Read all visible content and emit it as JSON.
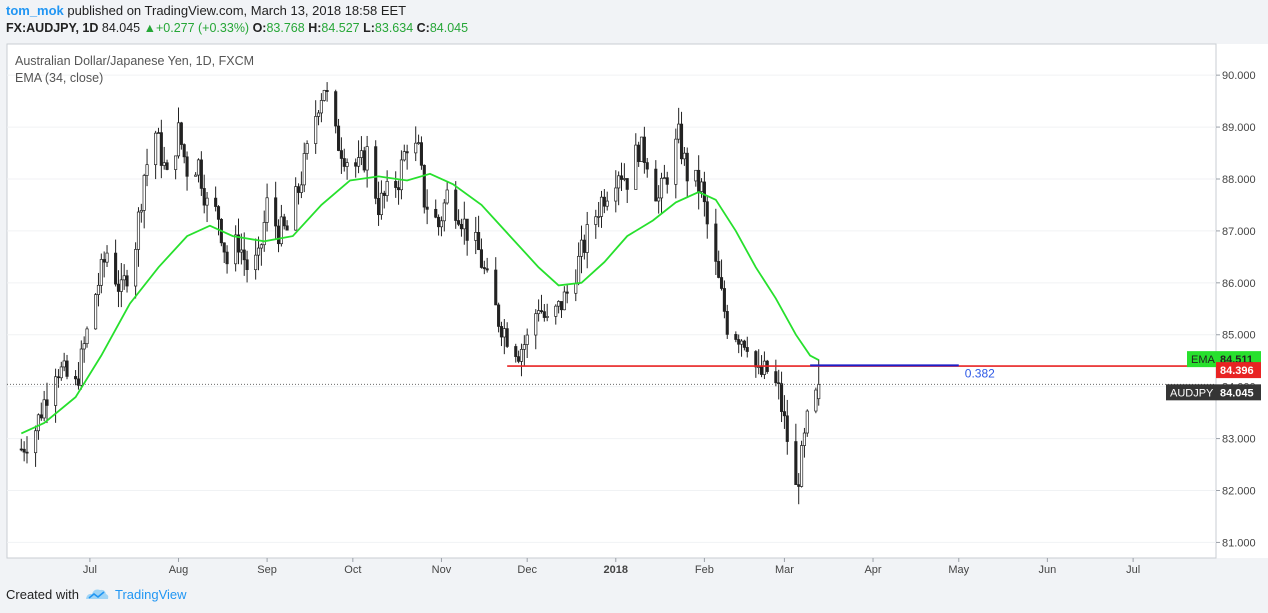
{
  "header": {
    "author": "tom_mok",
    "published_text": "published on TradingView.com, March 13, 2018 18:58 EET",
    "symbol": "FX:AUDJPY, 1D",
    "last": "84.045",
    "change": "+0.277 (+0.33%)",
    "o_label": "O:",
    "o": "83.768",
    "h_label": "H:",
    "h": "84.527",
    "l_label": "L:",
    "l": "83.634",
    "c_label": "C:",
    "c": "84.045"
  },
  "legend": {
    "title": "Australian Dollar/Japanese Yen, 1D, FXCM",
    "indicator": "EMA (34, close)"
  },
  "footer": {
    "created_with": "Created with",
    "brand": "TradingView"
  },
  "colors": {
    "candle": "#222222",
    "ema": "#27e02d",
    "support": "#e82323",
    "fib": "#1e1ec8",
    "fib_label": "#2d58e6",
    "brand": "#2196f3"
  },
  "chart_data": {
    "type": "candlestick",
    "yaxis": {
      "min": 80.7,
      "max": 90.6,
      "ticks": [
        "81.000",
        "82.000",
        "83.000",
        "84.000",
        "85.000",
        "86.000",
        "87.000",
        "88.000",
        "89.000",
        "90.000"
      ]
    },
    "xaxis": {
      "labels": [
        {
          "text": "Jul",
          "date": "2017-07-01"
        },
        {
          "text": "Aug",
          "date": "2017-08-01"
        },
        {
          "text": "Sep",
          "date": "2017-09-01"
        },
        {
          "text": "Oct",
          "date": "2017-10-01"
        },
        {
          "text": "Nov",
          "date": "2017-11-01"
        },
        {
          "text": "Dec",
          "date": "2017-12-01"
        },
        {
          "text": "2018",
          "date": "2018-01-01",
          "bold": true
        },
        {
          "text": "Feb",
          "date": "2018-02-01"
        },
        {
          "text": "Mar",
          "date": "2018-03-01"
        },
        {
          "text": "Apr",
          "date": "2018-04-01"
        },
        {
          "text": "May",
          "date": "2018-05-01"
        },
        {
          "text": "Jun",
          "date": "2018-06-01"
        },
        {
          "text": "Jul",
          "date": "2018-07-01"
        }
      ]
    },
    "price_path": [
      {
        "date": "2017-06-07",
        "price": 82.8
      },
      {
        "date": "2017-06-12",
        "price": 83.2
      },
      {
        "date": "2017-06-19",
        "price": 84.4
      },
      {
        "date": "2017-06-26",
        "price": 84.0
      },
      {
        "date": "2017-07-03",
        "price": 85.8
      },
      {
        "date": "2017-07-07",
        "price": 86.6
      },
      {
        "date": "2017-07-12",
        "price": 85.8
      },
      {
        "date": "2017-07-17",
        "price": 86.8
      },
      {
        "date": "2017-07-20",
        "price": 88.1
      },
      {
        "date": "2017-07-24",
        "price": 88.9
      },
      {
        "date": "2017-07-28",
        "price": 88.0
      },
      {
        "date": "2017-08-01",
        "price": 88.9
      },
      {
        "date": "2017-08-04",
        "price": 88.2
      },
      {
        "date": "2017-08-08",
        "price": 88.3
      },
      {
        "date": "2017-08-11",
        "price": 87.5
      },
      {
        "date": "2017-08-15",
        "price": 87.3
      },
      {
        "date": "2017-08-18",
        "price": 86.4
      },
      {
        "date": "2017-08-22",
        "price": 86.8
      },
      {
        "date": "2017-08-25",
        "price": 86.3
      },
      {
        "date": "2017-08-29",
        "price": 86.4
      },
      {
        "date": "2017-09-01",
        "price": 87.5
      },
      {
        "date": "2017-09-05",
        "price": 87.0
      },
      {
        "date": "2017-09-08",
        "price": 87.0
      },
      {
        "date": "2017-09-12",
        "price": 87.8
      },
      {
        "date": "2017-09-15",
        "price": 88.5
      },
      {
        "date": "2017-09-19",
        "price": 89.5
      },
      {
        "date": "2017-09-21",
        "price": 89.8
      },
      {
        "date": "2017-09-25",
        "price": 88.8
      },
      {
        "date": "2017-09-29",
        "price": 88.4
      },
      {
        "date": "2017-10-03",
        "price": 88.2
      },
      {
        "date": "2017-10-06",
        "price": 88.5
      },
      {
        "date": "2017-10-10",
        "price": 87.5
      },
      {
        "date": "2017-10-13",
        "price": 87.7
      },
      {
        "date": "2017-10-17",
        "price": 88.0
      },
      {
        "date": "2017-10-20",
        "price": 88.7
      },
      {
        "date": "2017-10-24",
        "price": 88.5
      },
      {
        "date": "2017-10-26",
        "price": 87.6
      },
      {
        "date": "2017-10-31",
        "price": 87.1
      },
      {
        "date": "2017-11-03",
        "price": 87.7
      },
      {
        "date": "2017-11-07",
        "price": 87.4
      },
      {
        "date": "2017-11-10",
        "price": 87.0
      },
      {
        "date": "2017-11-14",
        "price": 86.6
      },
      {
        "date": "2017-11-17",
        "price": 86.0
      },
      {
        "date": "2017-11-21",
        "price": 85.3
      },
      {
        "date": "2017-11-24",
        "price": 85.0
      },
      {
        "date": "2017-11-28",
        "price": 84.7
      },
      {
        "date": "2017-12-01",
        "price": 84.9
      },
      {
        "date": "2017-12-05",
        "price": 85.6
      },
      {
        "date": "2017-12-08",
        "price": 85.2
      },
      {
        "date": "2017-12-12",
        "price": 85.5
      },
      {
        "date": "2017-12-15",
        "price": 85.8
      },
      {
        "date": "2017-12-19",
        "price": 86.4
      },
      {
        "date": "2017-12-22",
        "price": 86.9
      },
      {
        "date": "2017-12-27",
        "price": 87.6
      },
      {
        "date": "2018-01-02",
        "price": 88.2
      },
      {
        "date": "2018-01-05",
        "price": 88.0
      },
      {
        "date": "2018-01-09",
        "price": 88.6
      },
      {
        "date": "2018-01-12",
        "price": 88.4
      },
      {
        "date": "2018-01-16",
        "price": 87.6
      },
      {
        "date": "2018-01-19",
        "price": 88.1
      },
      {
        "date": "2018-01-23",
        "price": 88.8
      },
      {
        "date": "2018-01-26",
        "price": 88.1
      },
      {
        "date": "2018-01-31",
        "price": 87.8
      },
      {
        "date": "2018-02-02",
        "price": 87.1
      },
      {
        "date": "2018-02-06",
        "price": 86.0
      },
      {
        "date": "2018-02-09",
        "price": 85.2
      },
      {
        "date": "2018-02-13",
        "price": 85.0
      },
      {
        "date": "2018-02-16",
        "price": 84.9
      },
      {
        "date": "2018-02-20",
        "price": 84.2
      },
      {
        "date": "2018-02-23",
        "price": 84.3
      },
      {
        "date": "2018-02-27",
        "price": 83.9
      },
      {
        "date": "2018-03-02",
        "price": 83.0
      },
      {
        "date": "2018-03-05",
        "price": 82.0
      },
      {
        "date": "2018-03-07",
        "price": 82.6
      },
      {
        "date": "2018-03-09",
        "price": 83.3
      },
      {
        "date": "2018-03-12",
        "price": 83.77
      },
      {
        "date": "2018-03-13",
        "price": 84.045
      }
    ],
    "series": [
      {
        "name": "EMA",
        "values": [
          {
            "date": "2017-06-07",
            "value": 83.1
          },
          {
            "date": "2017-06-15",
            "value": 83.3
          },
          {
            "date": "2017-06-26",
            "value": 83.8
          },
          {
            "date": "2017-07-05",
            "value": 84.6
          },
          {
            "date": "2017-07-15",
            "value": 85.6
          },
          {
            "date": "2017-07-25",
            "value": 86.3
          },
          {
            "date": "2017-08-04",
            "value": 86.9
          },
          {
            "date": "2017-08-12",
            "value": 87.1
          },
          {
            "date": "2017-08-20",
            "value": 86.9
          },
          {
            "date": "2017-08-31",
            "value": 86.8
          },
          {
            "date": "2017-09-10",
            "value": 86.9
          },
          {
            "date": "2017-09-20",
            "value": 87.5
          },
          {
            "date": "2017-09-30",
            "value": 87.97
          },
          {
            "date": "2017-10-10",
            "value": 88.05
          },
          {
            "date": "2017-10-20",
            "value": 87.97
          },
          {
            "date": "2017-10-28",
            "value": 88.1
          },
          {
            "date": "2017-11-05",
            "value": 87.9
          },
          {
            "date": "2017-11-15",
            "value": 87.5
          },
          {
            "date": "2017-11-25",
            "value": 86.9
          },
          {
            "date": "2017-12-05",
            "value": 86.3
          },
          {
            "date": "2017-12-12",
            "value": 85.95
          },
          {
            "date": "2017-12-20",
            "value": 86.0
          },
          {
            "date": "2017-12-28",
            "value": 86.4
          },
          {
            "date": "2018-01-05",
            "value": 86.9
          },
          {
            "date": "2018-01-14",
            "value": 87.2
          },
          {
            "date": "2018-01-22",
            "value": 87.55
          },
          {
            "date": "2018-01-30",
            "value": 87.75
          },
          {
            "date": "2018-02-05",
            "value": 87.6
          },
          {
            "date": "2018-02-12",
            "value": 87.0
          },
          {
            "date": "2018-02-19",
            "value": 86.3
          },
          {
            "date": "2018-02-26",
            "value": 85.7
          },
          {
            "date": "2018-03-05",
            "value": 85.0
          },
          {
            "date": "2018-03-10",
            "value": 84.6
          },
          {
            "date": "2018-03-13",
            "value": 84.511
          }
        ]
      }
    ],
    "support_line": {
      "price": 84.396,
      "start_date": "2017-11-24"
    },
    "fib_level": {
      "label": "0.382",
      "price": 84.41,
      "start_date": "2018-03-10",
      "end_date": "2018-05-01"
    },
    "last_price_line": {
      "price": 84.045
    },
    "price_labels": [
      {
        "name": "EMA",
        "text": "84.511",
        "value": 84.511,
        "color": "#27e02d",
        "text_color": "#222222"
      },
      {
        "name": "",
        "text": "84.396",
        "value": 84.396,
        "color": "#e82323",
        "text_color": "#ffffff"
      },
      {
        "name": "AUDJPY",
        "text": "84.045",
        "value": 84.045,
        "color": "#353535",
        "text_color": "#ffffff"
      }
    ]
  }
}
